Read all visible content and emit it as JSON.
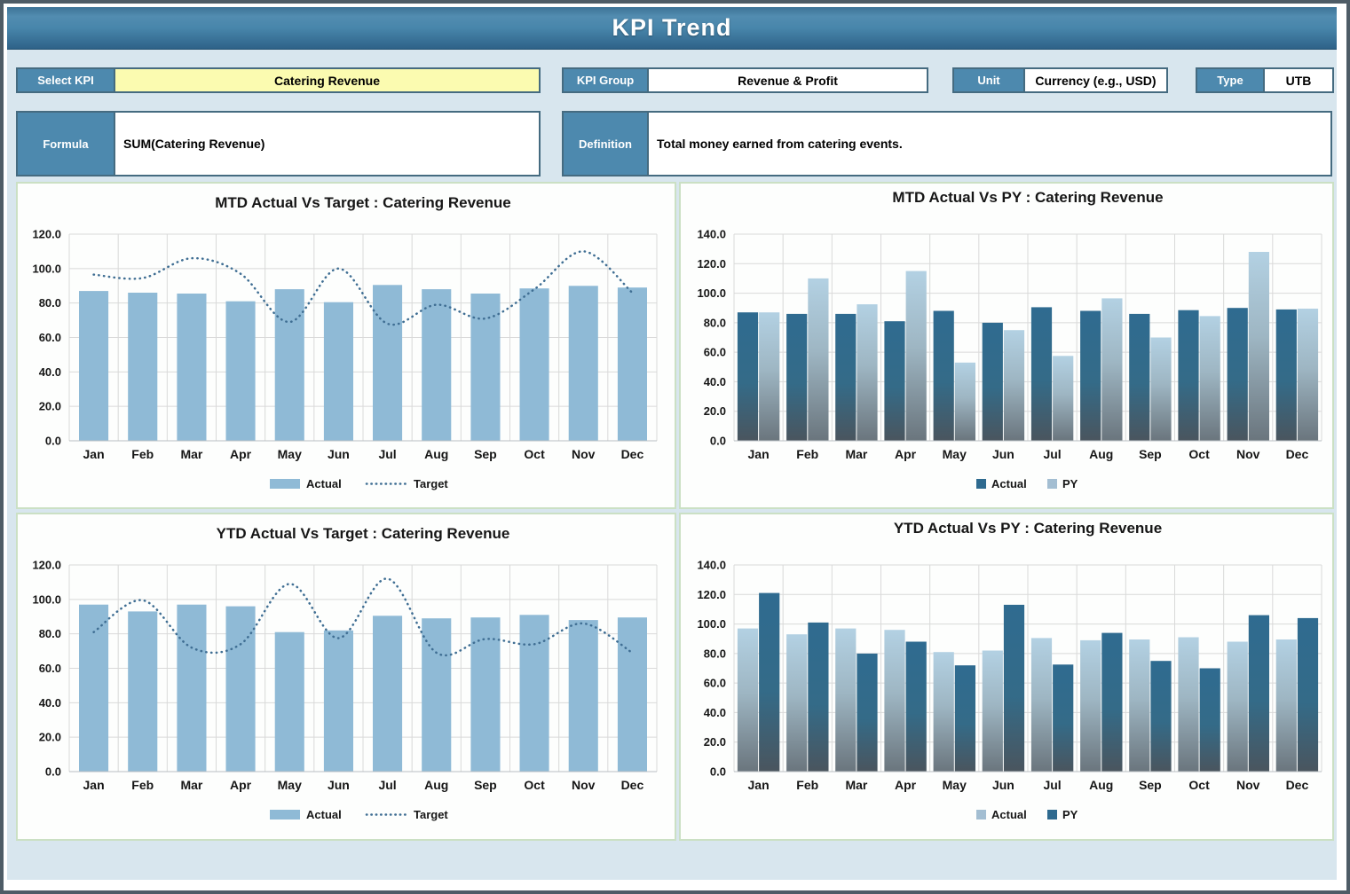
{
  "header": {
    "title": "KPI Trend"
  },
  "controls": {
    "select_kpi": {
      "label": "Select KPI",
      "value": "Catering Revenue"
    },
    "kpi_group": {
      "label": "KPI Group",
      "value": "Revenue & Profit"
    },
    "unit": {
      "label": "Unit",
      "value": "Currency (e.g., USD)"
    },
    "type": {
      "label": "Type",
      "value": "UTB"
    },
    "formula": {
      "label": "Formula",
      "value": "SUM(Catering Revenue)"
    },
    "definition": {
      "label": "Definition",
      "value": "Total money earned from catering events."
    }
  },
  "colors": {
    "header_blue": "#4886ab",
    "label_blue": "#4d89ae",
    "select_yellow": "#fbfbb0",
    "board_bg": "#d8e6ee",
    "panel_border": "#cbe0c4",
    "bar_light": "#8fbad6",
    "bar_dark": "#2e6a8f",
    "py_light_top": "#aecde1",
    "gradient_gray": "#6a757d",
    "target_line": "#3f6e93",
    "grid_line": "#d9d9d9"
  },
  "months": [
    "Jan",
    "Feb",
    "Mar",
    "Apr",
    "May",
    "Jun",
    "Jul",
    "Aug",
    "Sep",
    "Oct",
    "Nov",
    "Dec"
  ],
  "chart_data": [
    {
      "type": "bar",
      "title": "MTD Actual Vs Target : Catering Revenue",
      "categories": [
        "Jan",
        "Feb",
        "Mar",
        "Apr",
        "May",
        "Jun",
        "Jul",
        "Aug",
        "Sep",
        "Oct",
        "Nov",
        "Dec"
      ],
      "xlabel": "",
      "ylabel": "",
      "ylim": [
        0,
        120
      ],
      "ytick_step": 20,
      "grid": true,
      "legend_position": "bottom",
      "series": [
        {
          "name": "Actual",
          "kind": "bar",
          "style": "flat_light",
          "values": [
            87,
            86,
            85.5,
            81,
            88,
            80.5,
            90.5,
            88,
            85.5,
            88.5,
            90,
            89
          ]
        },
        {
          "name": "Target",
          "kind": "line",
          "style": "target_dotted",
          "values": [
            96.5,
            94.5,
            106,
            97,
            69,
            100,
            68,
            79,
            71,
            88,
            110,
            86
          ]
        }
      ]
    },
    {
      "type": "bar",
      "title": "MTD Actual Vs PY : Catering Revenue",
      "categories": [
        "Jan",
        "Feb",
        "Mar",
        "Apr",
        "May",
        "Jun",
        "Jul",
        "Aug",
        "Sep",
        "Oct",
        "Nov",
        "Dec"
      ],
      "xlabel": "",
      "ylabel": "",
      "ylim": [
        0,
        140
      ],
      "ytick_step": 20,
      "grid": true,
      "legend_position": "bottom",
      "series": [
        {
          "name": "Actual",
          "kind": "bar",
          "style": "dark_grad",
          "values": [
            87,
            86,
            86,
            81,
            88,
            80,
            90.5,
            88,
            86,
            88.5,
            90,
            89
          ]
        },
        {
          "name": "PY",
          "kind": "bar",
          "style": "light_grad",
          "values": [
            87,
            110,
            92.5,
            115,
            53,
            75,
            57.5,
            96.5,
            70,
            84.5,
            128,
            89.5
          ]
        }
      ]
    },
    {
      "type": "bar",
      "title": "YTD Actual Vs Target : Catering Revenue",
      "categories": [
        "Jan",
        "Feb",
        "Mar",
        "Apr",
        "May",
        "Jun",
        "Jul",
        "Aug",
        "Sep",
        "Oct",
        "Nov",
        "Dec"
      ],
      "xlabel": "",
      "ylabel": "",
      "ylim": [
        0,
        120
      ],
      "ytick_step": 20,
      "grid": true,
      "legend_position": "bottom",
      "series": [
        {
          "name": "Actual",
          "kind": "bar",
          "style": "flat_light",
          "values": [
            97,
            93,
            97,
            96,
            81,
            82,
            90.5,
            89,
            89.5,
            91,
            88,
            89.5
          ]
        },
        {
          "name": "Target",
          "kind": "line",
          "style": "target_dotted",
          "values": [
            81,
            99.5,
            72,
            74,
            109,
            77.5,
            112,
            69,
            77,
            74,
            86,
            69
          ]
        }
      ]
    },
    {
      "type": "bar",
      "title": "YTD Actual Vs PY : Catering Revenue",
      "categories": [
        "Jan",
        "Feb",
        "Mar",
        "Apr",
        "May",
        "Jun",
        "Jul",
        "Aug",
        "Sep",
        "Oct",
        "Nov",
        "Dec"
      ],
      "xlabel": "",
      "ylabel": "",
      "ylim": [
        0,
        140
      ],
      "ytick_step": 20,
      "grid": true,
      "legend_position": "bottom",
      "series": [
        {
          "name": "Actual",
          "kind": "bar",
          "style": "light_grad",
          "values": [
            97,
            93,
            97,
            96,
            81,
            82,
            90.5,
            89,
            89.5,
            91,
            88,
            89.5
          ]
        },
        {
          "name": "PY",
          "kind": "bar",
          "style": "dark_grad",
          "values": [
            121,
            101,
            80,
            88,
            72,
            113,
            72.5,
            94,
            75,
            70,
            106,
            104
          ]
        }
      ]
    }
  ]
}
